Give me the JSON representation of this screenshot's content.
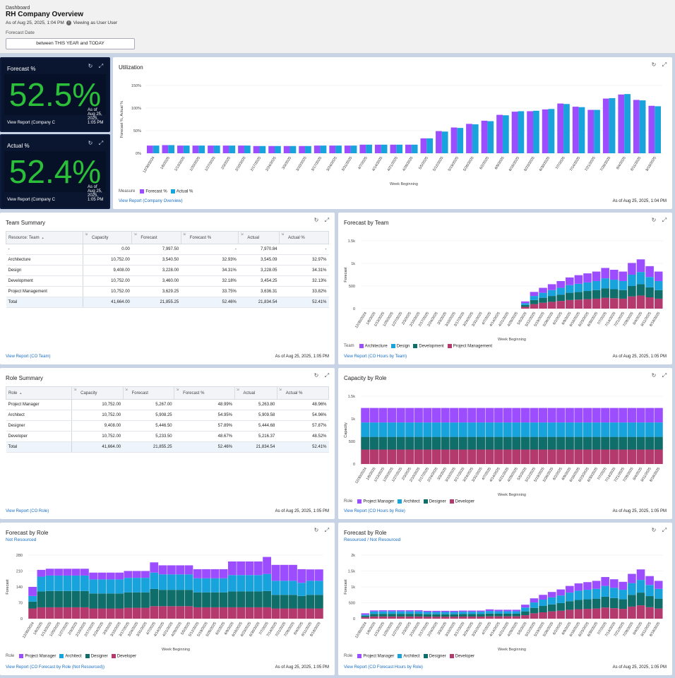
{
  "header": {
    "label": "Dashboard",
    "title": "RH Company Overview",
    "as_of": "As of Aug 25, 2025, 1:04 PM",
    "viewing_as": "Viewing as User User",
    "filter_label": "Forecast Date",
    "filter_value": "between THIS YEAR and TODAY"
  },
  "colors": {
    "purple": "#9b4dff",
    "blue": "#19a3dc",
    "teal": "#0f6e6a",
    "magenta": "#b43a6e",
    "kpi_green": "#2bbf3a",
    "link": "#1a6fc9"
  },
  "icons": {
    "refresh": "refresh-icon",
    "expand": "expand-icon"
  },
  "kpi_forecast": {
    "title": "Forecast %",
    "value": "52.5%",
    "link": "View Report (Company C",
    "as_of": "As of Aug 25, 2025, 1:05 PM"
  },
  "kpi_actual": {
    "title": "Actual %",
    "value": "52.4%",
    "link": "View Report (Company C",
    "as_of": "As of Aug 25, 2025, 1:05 PM"
  },
  "weeks_util": [
    "12/30/2024",
    "1/6/2025",
    "1/13/2025",
    "1/20/2025",
    "1/27/2025",
    "2/3/2025",
    "2/10/2025",
    "2/17/2025",
    "2/24/2025",
    "3/3/2025",
    "3/10/2025",
    "3/17/2025",
    "3/24/2025",
    "3/31/2025",
    "4/7/2025",
    "4/14/2025",
    "4/21/2025",
    "4/28/2025",
    "5/5/2025",
    "5/12/2025",
    "5/19/2025",
    "5/26/2025",
    "6/2/2025",
    "6/9/2025",
    "6/16/2025",
    "6/23/2025",
    "6/30/2025",
    "7/7/2025",
    "7/14/2025",
    "7/21/2025",
    "7/28/2025",
    "8/4/2025",
    "8/11/2025",
    "8/18/2025"
  ],
  "weeks_tick_util": [
    "12/30/2024",
    "1/6/2025",
    "1/13/2025",
    "1/20/2025",
    "1/27/2025",
    "2/3/2025",
    "2/10/2025",
    "2/17/2025",
    "2/24/2025",
    "3/3/2025",
    "3/10/2025",
    "3/17/2025",
    "3/24/2025",
    "3/31/2025",
    "4/7/2025",
    "4/14/2025",
    "4/21/2025",
    "4/28/2025",
    "5/5/2025",
    "5/12/2025",
    "5/19/2025",
    "5/26/2025",
    "6/2/2025",
    "6/9/2025",
    "6/16/2025",
    "6/23/2025",
    "6/30/2025",
    "7/7/2025",
    "7/14/2025",
    "7/21/2025",
    "7/28/2025",
    "8/4/2025",
    "8/11/2025",
    "8/18/2025"
  ],
  "weeks_stack": [
    "12/30/2024",
    "1/6/2025",
    "1/13/2025",
    "1/20/2025",
    "1/27/2025",
    "2/3/2025",
    "2/10/2025",
    "2/17/2025",
    "2/24/2025",
    "3/3/2025",
    "3/10/2025",
    "3/17/2025",
    "3/24/2025",
    "3/31/2025",
    "4/7/2025",
    "4/14/2025",
    "4/21/2025",
    "4/28/2025",
    "5/5/2025",
    "5/12/2025",
    "5/19/2025",
    "5/26/2025",
    "6/2/2025",
    "6/9/2025",
    "6/16/2025",
    "6/23/2025",
    "6/30/2025",
    "7/7/2025",
    "7/14/2025",
    "7/21/2025",
    "7/28/2025",
    "8/4/2025",
    "8/11/2025",
    "8/18/2025"
  ],
  "utilization": {
    "title": "Utilization",
    "link": "View Report (Company Overview)",
    "as_of": "As of Aug 25, 2025, 1:04 PM",
    "chart_data": {
      "type": "bar",
      "ylabel": "Forecast %, Actual %",
      "xlabel": "Week Beginning",
      "yticks": [
        "0%",
        "50%",
        "100%",
        "150%"
      ],
      "ylim": [
        0,
        150
      ],
      "legend_title": "Measure",
      "series": [
        {
          "name": "Forecast %",
          "values": [
            17,
            18,
            17,
            17,
            17,
            17,
            17,
            16,
            16,
            16,
            16,
            17,
            17,
            17,
            19,
            19,
            19,
            19,
            33,
            49,
            57,
            65,
            72,
            85,
            92,
            93,
            97,
            110,
            103,
            96,
            121,
            130,
            118,
            105
          ]
        },
        {
          "name": "Actual %",
          "values": [
            17,
            18,
            17,
            17,
            17,
            17,
            17,
            16,
            16,
            16,
            16,
            17,
            17,
            17,
            19,
            19,
            19,
            19,
            33,
            48,
            56,
            64,
            71,
            84,
            93,
            94,
            98,
            109,
            102,
            96,
            122,
            131,
            117,
            104
          ]
        }
      ]
    }
  },
  "team_summary": {
    "title": "Team Summary",
    "columns": [
      "Resource: Team",
      "Capacity",
      "Forecast",
      "Forecast %",
      "Actual",
      "Actual %"
    ],
    "rows": [
      [
        "-",
        "0.00",
        "7,997.50",
        "-",
        "7,970.84",
        "-"
      ],
      [
        "Architecture",
        "10,752.00",
        "3,540.50",
        "32.93%",
        "3,545.09",
        "32.97%"
      ],
      [
        "Design",
        "9,408.00",
        "3,228.00",
        "34.31%",
        "3,228.05",
        "34.31%"
      ],
      [
        "Development",
        "10,752.00",
        "3,460.00",
        "32.18%",
        "3,454.25",
        "32.13%"
      ],
      [
        "Project Management",
        "10,752.00",
        "3,629.25",
        "33.75%",
        "3,636.31",
        "33.82%"
      ],
      [
        "Total",
        "41,664.00",
        "21,855.25",
        "52.46%",
        "21,834.54",
        "52.41%"
      ]
    ],
    "link": "View Report (CO Team)",
    "as_of": "As of Aug 25, 2025, 1:05 PM"
  },
  "forecast_by_team": {
    "title": "Forecast by Team",
    "link": "View Report (CO Hours by Team)",
    "as_of": "As of Aug 25, 2025, 1:05 PM",
    "chart_data": {
      "type": "bar",
      "stacked": true,
      "ylabel": "Forecast",
      "xlabel": "Week Beginning",
      "yticks": [
        "0",
        "500",
        "1k",
        "1.5k"
      ],
      "ylim": [
        0,
        1500
      ],
      "legend_title": "Team",
      "series": [
        {
          "name": "Project Management",
          "values": [
            0,
            0,
            0,
            0,
            0,
            0,
            0,
            0,
            0,
            0,
            0,
            0,
            0,
            0,
            0,
            0,
            0,
            0,
            40,
            100,
            130,
            150,
            170,
            190,
            200,
            210,
            220,
            240,
            230,
            220,
            270,
            290,
            250,
            220
          ]
        },
        {
          "name": "Development",
          "values": [
            0,
            0,
            0,
            0,
            0,
            0,
            0,
            0,
            0,
            0,
            0,
            0,
            0,
            0,
            0,
            0,
            0,
            0,
            40,
            90,
            110,
            130,
            140,
            160,
            170,
            180,
            190,
            210,
            200,
            190,
            230,
            250,
            220,
            190
          ]
        },
        {
          "name": "Design",
          "values": [
            0,
            0,
            0,
            0,
            0,
            0,
            0,
            0,
            0,
            0,
            0,
            0,
            0,
            0,
            0,
            0,
            0,
            0,
            40,
            90,
            110,
            130,
            150,
            170,
            180,
            190,
            200,
            220,
            210,
            200,
            250,
            270,
            230,
            200
          ]
        },
        {
          "name": "Architecture",
          "values": [
            0,
            0,
            0,
            0,
            0,
            0,
            0,
            0,
            0,
            0,
            0,
            0,
            0,
            0,
            0,
            0,
            0,
            0,
            40,
            90,
            110,
            130,
            150,
            170,
            190,
            200,
            210,
            230,
            220,
            210,
            260,
            280,
            240,
            210
          ]
        }
      ]
    }
  },
  "role_summary": {
    "title": "Role Summary",
    "columns": [
      "Role",
      "Capacity",
      "Forecast",
      "Forecast %",
      "Actual",
      "Actual %"
    ],
    "rows": [
      [
        "Project Manager",
        "10,752.00",
        "5,267.00",
        "48.99%",
        "5,263.80",
        "48.96%"
      ],
      [
        "Architect",
        "10,752.00",
        "5,908.25",
        "54.95%",
        "5,909.58",
        "54.96%"
      ],
      [
        "Designer",
        "9,408.00",
        "5,446.50",
        "57.89%",
        "5,444.68",
        "57.87%"
      ],
      [
        "Developer",
        "10,752.00",
        "5,233.50",
        "48.67%",
        "5,216.37",
        "48.52%"
      ],
      [
        "Total",
        "41,664.00",
        "21,855.25",
        "52.46%",
        "21,834.54",
        "52.41%"
      ]
    ],
    "link": "View Report (CO Role)",
    "as_of": "As of Aug 25, 2025, 1:05 PM"
  },
  "capacity_by_role": {
    "title": "Capacity by Role",
    "link": "View Report (CO Hours by Role)",
    "as_of": "As of Aug 25, 2025, 1:05 PM",
    "chart_data": {
      "type": "bar",
      "stacked": true,
      "ylabel": "Capacity",
      "xlabel": "Week Beginning",
      "yticks": [
        "0",
        "500",
        "1k",
        "1.5k"
      ],
      "ylim": [
        0,
        1500
      ],
      "legend_title": "Role",
      "series": [
        {
          "name": "Developer",
          "values": [
            320,
            320,
            320,
            320,
            320,
            320,
            320,
            320,
            320,
            320,
            320,
            320,
            320,
            320,
            320,
            320,
            320,
            320,
            320,
            320,
            320,
            320,
            320,
            320,
            320,
            320,
            320,
            320,
            320,
            320,
            320,
            320,
            320,
            320
          ]
        },
        {
          "name": "Designer",
          "values": [
            280,
            280,
            280,
            280,
            280,
            280,
            280,
            280,
            280,
            280,
            280,
            280,
            280,
            280,
            280,
            280,
            280,
            280,
            280,
            280,
            280,
            280,
            280,
            280,
            280,
            280,
            280,
            280,
            280,
            280,
            280,
            280,
            280,
            280
          ]
        },
        {
          "name": "Architect",
          "values": [
            320,
            320,
            320,
            320,
            320,
            320,
            320,
            320,
            320,
            320,
            320,
            320,
            320,
            320,
            320,
            320,
            320,
            320,
            320,
            320,
            320,
            320,
            320,
            320,
            320,
            320,
            320,
            320,
            320,
            320,
            320,
            320,
            320,
            320
          ]
        },
        {
          "name": "Project Manager",
          "values": [
            320,
            320,
            320,
            320,
            320,
            320,
            320,
            320,
            320,
            320,
            320,
            320,
            320,
            320,
            320,
            320,
            320,
            320,
            320,
            320,
            320,
            320,
            320,
            320,
            320,
            320,
            320,
            320,
            320,
            320,
            320,
            320,
            320,
            320
          ]
        }
      ]
    }
  },
  "forecast_by_role_nr": {
    "title": "Forecast by Role",
    "subtitle": "Not Resourced",
    "link": "View Report (CO Forecast by Role (Not Resourced))",
    "as_of": "As of Aug 25, 2025, 1:05 PM",
    "chart_data": {
      "type": "bar",
      "stacked": true,
      "ylabel": "Forecast",
      "xlabel": "Week Beginning",
      "yticks": [
        "0",
        "70",
        "140",
        "210",
        "280"
      ],
      "ylim": [
        0,
        280
      ],
      "legend_title": "Role",
      "series": [
        {
          "name": "Developer",
          "values": [
            45,
            50,
            50,
            50,
            50,
            50,
            50,
            45,
            45,
            45,
            45,
            48,
            48,
            48,
            55,
            55,
            55,
            55,
            55,
            50,
            50,
            50,
            50,
            50,
            50,
            50,
            50,
            50,
            45,
            45,
            45,
            45,
            45,
            45
          ]
        },
        {
          "name": "Designer",
          "values": [
            30,
            70,
            72,
            72,
            72,
            72,
            72,
            66,
            66,
            66,
            66,
            68,
            68,
            68,
            76,
            72,
            72,
            72,
            72,
            66,
            66,
            66,
            66,
            70,
            70,
            70,
            70,
            72,
            60,
            60,
            60,
            55,
            60,
            60
          ]
        },
        {
          "name": "Architect",
          "values": [
            25,
            65,
            68,
            68,
            68,
            68,
            68,
            62,
            62,
            62,
            62,
            64,
            64,
            64,
            72,
            68,
            68,
            68,
            68,
            62,
            62,
            62,
            62,
            72,
            72,
            72,
            72,
            75,
            62,
            62,
            62,
            58,
            62,
            62
          ]
        },
        {
          "name": "Project Manager",
          "values": [
            40,
            30,
            30,
            30,
            30,
            30,
            30,
            30,
            30,
            30,
            30,
            30,
            30,
            30,
            45,
            40,
            40,
            40,
            40,
            40,
            40,
            40,
            40,
            60,
            60,
            60,
            60,
            75,
            70,
            70,
            70,
            60,
            50,
            50
          ]
        }
      ]
    }
  },
  "forecast_by_role_r": {
    "title": "Forecast by Role",
    "subtitle": "Resourced / Not Resourced",
    "link": "View Report (CO Forecast Hours by Role)",
    "as_of": "As of Aug 25, 2025, 1:05 PM",
    "chart_data": {
      "type": "bar",
      "stacked": true,
      "ylabel": "Forecast",
      "xlabel": "Week Beginning",
      "yticks": [
        "0",
        "500",
        "1k",
        "1.5k",
        "2k"
      ],
      "ylim": [
        0,
        2000
      ],
      "legend_title": "Role",
      "series": [
        {
          "name": "Developer",
          "values": [
            50,
            70,
            70,
            70,
            70,
            70,
            70,
            65,
            65,
            65,
            65,
            68,
            68,
            68,
            75,
            75,
            75,
            75,
            110,
            170,
            200,
            230,
            250,
            280,
            300,
            310,
            320,
            350,
            330,
            310,
            380,
            420,
            360,
            320
          ]
        },
        {
          "name": "Designer",
          "values": [
            40,
            80,
            82,
            82,
            82,
            82,
            82,
            75,
            75,
            75,
            75,
            78,
            78,
            78,
            86,
            82,
            82,
            82,
            120,
            170,
            200,
            220,
            240,
            270,
            290,
            300,
            310,
            340,
            320,
            300,
            370,
            400,
            350,
            310
          ]
        },
        {
          "name": "Architect",
          "values": [
            35,
            75,
            78,
            78,
            78,
            78,
            78,
            72,
            72,
            72,
            72,
            74,
            74,
            74,
            82,
            78,
            78,
            78,
            120,
            170,
            200,
            220,
            240,
            270,
            290,
            300,
            310,
            340,
            320,
            300,
            370,
            400,
            350,
            310
          ]
        },
        {
          "name": "Project Manager",
          "values": [
            45,
            35,
            35,
            35,
            35,
            35,
            35,
            35,
            35,
            35,
            35,
            35,
            35,
            35,
            50,
            45,
            45,
            45,
            90,
            130,
            150,
            170,
            190,
            210,
            230,
            240,
            250,
            280,
            270,
            250,
            290,
            330,
            280,
            250
          ]
        }
      ]
    }
  }
}
